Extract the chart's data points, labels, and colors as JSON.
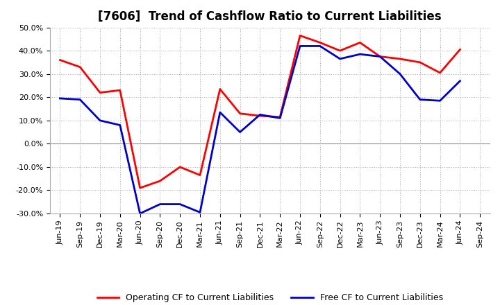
{
  "title": "[7606]  Trend of Cashflow Ratio to Current Liabilities",
  "x_labels": [
    "Jun-19",
    "Sep-19",
    "Dec-19",
    "Mar-20",
    "Jun-20",
    "Sep-20",
    "Dec-20",
    "Mar-21",
    "Jun-21",
    "Sep-21",
    "Dec-21",
    "Mar-22",
    "Jun-22",
    "Sep-22",
    "Dec-22",
    "Mar-23",
    "Jun-23",
    "Sep-23",
    "Dec-23",
    "Mar-24",
    "Jun-24",
    "Sep-24"
  ],
  "operating_cf": [
    36.0,
    33.0,
    22.0,
    23.0,
    -19.0,
    -16.0,
    -10.0,
    -13.5,
    23.5,
    13.0,
    12.0,
    11.5,
    46.5,
    43.5,
    40.0,
    43.5,
    37.5,
    36.5,
    35.0,
    30.5,
    40.5,
    null
  ],
  "free_cf": [
    19.5,
    19.0,
    10.0,
    8.0,
    -30.0,
    -26.0,
    -26.0,
    -29.5,
    13.5,
    5.0,
    12.5,
    11.0,
    42.0,
    42.0,
    36.5,
    38.5,
    37.5,
    30.0,
    19.0,
    18.5,
    27.0,
    null
  ],
  "operating_color": "#FF0000",
  "free_color": "#0000CC",
  "ylim": [
    -30.0,
    50.0
  ],
  "yticks": [
    -30.0,
    -20.0,
    -10.0,
    0.0,
    10.0,
    20.0,
    30.0,
    40.0,
    50.0
  ],
  "bg_color": "#FFFFFF",
  "plot_bg_color": "#FFFFFF",
  "grid_color": "#AAAAAA",
  "legend_operating": "Operating CF to Current Liabilities",
  "legend_free": "Free CF to Current Liabilities",
  "line_width": 2.0,
  "title_fontsize": 12,
  "tick_fontsize": 8,
  "legend_fontsize": 9
}
